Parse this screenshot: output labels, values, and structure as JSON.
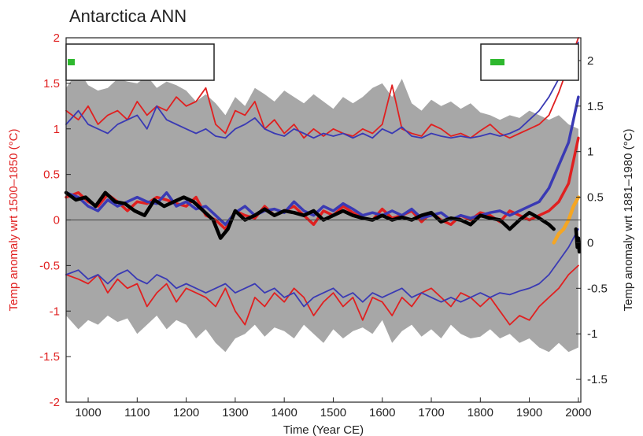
{
  "chart_data": {
    "type": "line",
    "title": "Antarctica ANN",
    "xlabel": "Time (Year CE)",
    "ylabel_left": "Temp anomaly wrt 1500–1850 (°C)",
    "ylabel_right": "Temp anomaly wrt 1881–1980 (°C)",
    "xlim": [
      955,
      2005
    ],
    "ylim_left": [
      -2,
      2
    ],
    "ylim_right": [
      -1.75,
      2.25
    ],
    "xticks": [
      "1000",
      "1100",
      "1200",
      "1300",
      "1400",
      "1500",
      "1600",
      "1700",
      "1800",
      "1900",
      "2000"
    ],
    "yticks_left": [
      "-2",
      "-1.5",
      "-1",
      "-0.5",
      "0",
      "0.5",
      "1",
      "1.5",
      "2"
    ],
    "yticks_right": [
      "-1.5",
      "-1",
      "-0.5",
      "0",
      "0.5",
      "1",
      "1.5",
      "2"
    ],
    "grid": false,
    "colors": {
      "band": "#a7a7a7",
      "red": "#e02020",
      "blue": "#3a3ab4",
      "black": "#000000",
      "orange": "#f5a623",
      "green": "#2eb82e",
      "left_axis": "#e02020",
      "right_axis": "#222222"
    },
    "band": {
      "x": [
        955,
        980,
        1000,
        1020,
        1040,
        1060,
        1080,
        1100,
        1120,
        1140,
        1160,
        1180,
        1200,
        1220,
        1240,
        1260,
        1280,
        1300,
        1320,
        1340,
        1360,
        1380,
        1400,
        1420,
        1440,
        1460,
        1480,
        1500,
        1520,
        1540,
        1560,
        1580,
        1600,
        1620,
        1640,
        1660,
        1680,
        1700,
        1720,
        1740,
        1760,
        1780,
        1800,
        1820,
        1840,
        1860,
        1880,
        1900,
        1920,
        1940,
        1960,
        1980,
        2000
      ],
      "upper": [
        1.45,
        1.65,
        1.48,
        1.42,
        1.45,
        1.55,
        1.52,
        1.5,
        1.58,
        1.45,
        1.52,
        1.48,
        1.42,
        1.3,
        1.38,
        1.28,
        1.15,
        1.35,
        1.25,
        1.45,
        1.38,
        1.3,
        1.42,
        1.35,
        1.28,
        1.38,
        1.3,
        1.22,
        1.35,
        1.28,
        1.35,
        1.45,
        1.5,
        1.35,
        1.55,
        1.28,
        1.2,
        1.32,
        1.25,
        1.3,
        1.22,
        1.28,
        1.18,
        1.15,
        1.1,
        1.15,
        1.12,
        1.2,
        1.15,
        1.1,
        1.15,
        1.05,
        1.0
      ],
      "lower": [
        -1.05,
        -1.2,
        -1.1,
        -1.15,
        -1.05,
        -1.12,
        -1.08,
        -1.25,
        -1.15,
        -1.05,
        -1.2,
        -1.1,
        -1.15,
        -1.3,
        -1.2,
        -1.35,
        -1.45,
        -1.3,
        -1.25,
        -1.15,
        -1.28,
        -1.18,
        -1.22,
        -1.3,
        -1.15,
        -1.25,
        -1.35,
        -1.2,
        -1.3,
        -1.22,
        -1.18,
        -1.25,
        -1.1,
        -1.35,
        -1.22,
        -1.15,
        -1.28,
        -1.2,
        -1.3,
        -1.15,
        -1.25,
        -1.3,
        -1.28,
        -1.2,
        -1.3,
        -1.25,
        -1.35,
        -1.3,
        -1.4,
        -1.45,
        -1.35,
        -1.45,
        -1.4
      ]
    },
    "series": [
      {
        "color_key": "red",
        "width": 3.5,
        "x": [
          955,
          980,
          1000,
          1020,
          1040,
          1060,
          1080,
          1100,
          1120,
          1140,
          1160,
          1180,
          1200,
          1220,
          1240,
          1260,
          1280,
          1300,
          1320,
          1340,
          1360,
          1380,
          1400,
          1420,
          1440,
          1460,
          1480,
          1500,
          1520,
          1540,
          1560,
          1580,
          1600,
          1620,
          1640,
          1660,
          1680,
          1700,
          1720,
          1740,
          1760,
          1780,
          1800,
          1820,
          1840,
          1860,
          1880,
          1900,
          1920,
          1940,
          1960,
          1980,
          2000
        ],
        "y": [
          0.25,
          0.3,
          0.2,
          0.15,
          0.28,
          0.2,
          0.1,
          0.2,
          0.18,
          0.25,
          0.22,
          0.18,
          0.15,
          0.25,
          0.05,
          0.0,
          -0.1,
          0.1,
          0.05,
          0.02,
          0.15,
          0.05,
          0.1,
          0.15,
          0.05,
          -0.05,
          0.1,
          0.05,
          0.15,
          0.08,
          0.02,
          0.0,
          0.12,
          0.02,
          0.05,
          0.1,
          -0.02,
          0.08,
          0.0,
          -0.05,
          0.05,
          0.0,
          0.08,
          0.05,
          -0.02,
          0.1,
          0.05,
          0.0,
          0.05,
          0.1,
          0.2,
          0.4,
          0.9
        ]
      },
      {
        "color_key": "blue",
        "width": 3.5,
        "x": [
          955,
          980,
          1000,
          1020,
          1040,
          1060,
          1080,
          1100,
          1120,
          1140,
          1160,
          1180,
          1200,
          1220,
          1240,
          1260,
          1280,
          1300,
          1320,
          1340,
          1360,
          1380,
          1400,
          1420,
          1440,
          1460,
          1480,
          1500,
          1520,
          1540,
          1560,
          1580,
          1600,
          1620,
          1640,
          1660,
          1680,
          1700,
          1720,
          1740,
          1760,
          1780,
          1800,
          1820,
          1840,
          1860,
          1880,
          1900,
          1920,
          1940,
          1960,
          1980,
          2000
        ],
        "y": [
          0.3,
          0.25,
          0.15,
          0.1,
          0.22,
          0.15,
          0.2,
          0.25,
          0.2,
          0.18,
          0.3,
          0.15,
          0.2,
          0.12,
          0.15,
          0.05,
          -0.05,
          0.08,
          0.15,
          0.05,
          0.1,
          0.12,
          0.08,
          0.2,
          0.1,
          0.05,
          0.15,
          0.1,
          0.18,
          0.12,
          0.05,
          0.08,
          0.05,
          0.1,
          0.05,
          0.12,
          0.02,
          0.05,
          0.08,
          0.0,
          0.05,
          0.02,
          0.05,
          0.08,
          0.1,
          0.05,
          0.1,
          0.15,
          0.2,
          0.35,
          0.6,
          0.85,
          1.35
        ]
      },
      {
        "color_key": "red",
        "width": 1.8,
        "x": [
          955,
          980,
          1000,
          1020,
          1040,
          1060,
          1080,
          1100,
          1120,
          1140,
          1160,
          1180,
          1200,
          1220,
          1240,
          1260,
          1280,
          1300,
          1320,
          1340,
          1360,
          1380,
          1400,
          1420,
          1440,
          1460,
          1480,
          1500,
          1520,
          1540,
          1560,
          1580,
          1600,
          1620,
          1640,
          1660,
          1680,
          1700,
          1720,
          1740,
          1760,
          1780,
          1800,
          1820,
          1840,
          1860,
          1880,
          1900,
          1920,
          1940,
          1960,
          1980,
          2000
        ],
        "y": [
          1.2,
          1.1,
          1.25,
          1.05,
          1.15,
          1.2,
          1.1,
          1.3,
          1.15,
          1.25,
          1.2,
          1.35,
          1.25,
          1.3,
          1.45,
          1.05,
          0.95,
          1.2,
          1.15,
          1.3,
          1.0,
          1.1,
          0.95,
          1.05,
          0.9,
          1.0,
          0.92,
          1.0,
          0.95,
          0.92,
          1.0,
          0.95,
          1.05,
          1.48,
          1.0,
          0.95,
          0.92,
          1.05,
          1.0,
          0.92,
          0.95,
          0.9,
          0.98,
          1.05,
          0.95,
          0.9,
          0.95,
          1.0,
          1.05,
          1.15,
          1.4,
          1.7,
          2.0
        ]
      },
      {
        "color_key": "blue",
        "width": 1.8,
        "x": [
          955,
          980,
          1000,
          1020,
          1040,
          1060,
          1080,
          1100,
          1120,
          1140,
          1160,
          1180,
          1200,
          1220,
          1240,
          1260,
          1280,
          1300,
          1320,
          1340,
          1360,
          1380,
          1400,
          1420,
          1440,
          1460,
          1480,
          1500,
          1520,
          1540,
          1560,
          1580,
          1600,
          1620,
          1640,
          1660,
          1680,
          1700,
          1720,
          1740,
          1760,
          1780,
          1800,
          1820,
          1840,
          1860,
          1880,
          1900,
          1920,
          1940,
          1960,
          1980,
          2000
        ],
        "y": [
          1.05,
          1.2,
          1.05,
          1.0,
          0.95,
          1.05,
          1.1,
          1.15,
          1.0,
          1.25,
          1.1,
          1.05,
          1.0,
          0.95,
          1.0,
          0.92,
          0.9,
          1.0,
          1.05,
          1.12,
          1.0,
          0.95,
          0.92,
          1.0,
          0.95,
          0.9,
          0.95,
          0.92,
          0.95,
          0.9,
          0.95,
          0.9,
          1.0,
          0.95,
          1.02,
          0.92,
          0.9,
          0.95,
          0.92,
          0.9,
          0.92,
          0.9,
          0.92,
          0.95,
          0.92,
          0.95,
          1.0,
          1.1,
          1.2,
          1.35,
          1.55,
          1.75,
          1.95
        ]
      },
      {
        "color_key": "red",
        "width": 1.8,
        "x": [
          955,
          980,
          1000,
          1020,
          1040,
          1060,
          1080,
          1100,
          1120,
          1140,
          1160,
          1180,
          1200,
          1220,
          1240,
          1260,
          1280,
          1300,
          1320,
          1340,
          1360,
          1380,
          1400,
          1420,
          1440,
          1460,
          1480,
          1500,
          1520,
          1540,
          1560,
          1580,
          1600,
          1620,
          1640,
          1660,
          1680,
          1700,
          1720,
          1740,
          1760,
          1780,
          1800,
          1820,
          1840,
          1860,
          1880,
          1900,
          1920,
          1940,
          1960,
          1980,
          2000
        ],
        "y": [
          -0.6,
          -0.65,
          -0.7,
          -0.6,
          -0.8,
          -0.65,
          -0.75,
          -0.7,
          -0.95,
          -0.8,
          -0.7,
          -0.9,
          -0.75,
          -0.8,
          -0.85,
          -0.95,
          -0.75,
          -1.0,
          -1.15,
          -0.85,
          -0.95,
          -0.8,
          -0.9,
          -0.75,
          -0.85,
          -1.05,
          -0.9,
          -0.8,
          -0.95,
          -0.85,
          -1.1,
          -0.85,
          -0.9,
          -1.05,
          -0.85,
          -0.95,
          -0.8,
          -0.75,
          -0.85,
          -0.95,
          -0.8,
          -0.85,
          -0.95,
          -0.85,
          -1.0,
          -1.15,
          -1.05,
          -1.1,
          -0.95,
          -0.85,
          -0.75,
          -0.6,
          -0.5
        ]
      },
      {
        "color_key": "blue",
        "width": 1.8,
        "x": [
          955,
          980,
          1000,
          1020,
          1040,
          1060,
          1080,
          1100,
          1120,
          1140,
          1160,
          1180,
          1200,
          1220,
          1240,
          1260,
          1280,
          1300,
          1320,
          1340,
          1360,
          1380,
          1400,
          1420,
          1440,
          1460,
          1480,
          1500,
          1520,
          1540,
          1560,
          1580,
          1600,
          1620,
          1640,
          1660,
          1680,
          1700,
          1720,
          1740,
          1760,
          1780,
          1800,
          1820,
          1840,
          1860,
          1880,
          1900,
          1920,
          1940,
          1960,
          1980,
          2000
        ],
        "y": [
          -0.6,
          -0.55,
          -0.65,
          -0.6,
          -0.7,
          -0.6,
          -0.55,
          -0.65,
          -0.7,
          -0.6,
          -0.65,
          -0.75,
          -0.7,
          -0.75,
          -0.8,
          -0.75,
          -0.7,
          -0.8,
          -0.75,
          -0.7,
          -0.8,
          -0.75,
          -0.85,
          -0.8,
          -0.95,
          -0.85,
          -0.8,
          -0.75,
          -0.85,
          -0.8,
          -0.9,
          -0.8,
          -0.85,
          -0.8,
          -0.75,
          -0.85,
          -0.8,
          -0.85,
          -0.9,
          -0.85,
          -0.9,
          -0.85,
          -0.8,
          -0.85,
          -0.8,
          -0.82,
          -0.78,
          -0.75,
          -0.7,
          -0.6,
          -0.45,
          -0.3,
          -0.1
        ]
      },
      {
        "color_key": "black",
        "width": 4.5,
        "x": [
          955,
          975,
          995,
          1015,
          1035,
          1055,
          1075,
          1095,
          1115,
          1135,
          1155,
          1175,
          1195,
          1215,
          1235,
          1255,
          1270,
          1285,
          1300,
          1320,
          1340,
          1360,
          1380,
          1400,
          1420,
          1440,
          1460,
          1480,
          1500,
          1520,
          1540,
          1560,
          1580,
          1600,
          1620,
          1640,
          1660,
          1680,
          1700,
          1720,
          1740,
          1760,
          1780,
          1800,
          1820,
          1840,
          1860,
          1880,
          1900,
          1920,
          1940,
          1950
        ],
        "y": [
          0.3,
          0.22,
          0.25,
          0.15,
          0.3,
          0.2,
          0.18,
          0.1,
          0.05,
          0.22,
          0.15,
          0.2,
          0.25,
          0.2,
          0.1,
          0.0,
          -0.2,
          -0.1,
          0.1,
          0.0,
          0.05,
          0.12,
          0.05,
          0.1,
          0.08,
          0.05,
          0.1,
          0.0,
          0.05,
          0.1,
          0.05,
          0.02,
          0.0,
          0.05,
          0.0,
          0.03,
          0.0,
          0.05,
          0.08,
          -0.02,
          0.02,
          0.0,
          -0.05,
          0.05,
          0.02,
          0.0,
          -0.1,
          0.0,
          0.08,
          0.02,
          -0.05,
          -0.1
        ]
      },
      {
        "color_key": "orange",
        "width": 4.5,
        "x": [
          1950,
          1960,
          1970,
          1980,
          1990,
          2000
        ],
        "y": [
          -0.25,
          -0.15,
          -0.1,
          0.0,
          0.15,
          0.25
        ]
      },
      {
        "color_key": "black",
        "width": 4.5,
        "x": [
          1995,
          1998,
          2000,
          2002
        ],
        "y": [
          -0.1,
          -0.3,
          -0.2,
          -0.35
        ]
      }
    ],
    "legend": [
      {
        "position": "top-left",
        "marker_color_key": "green"
      },
      {
        "position": "top-right",
        "marker_color_key": "green"
      }
    ]
  }
}
